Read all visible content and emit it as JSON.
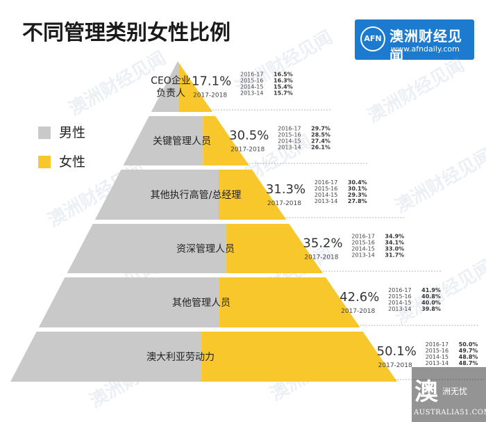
{
  "title": "不同管理类别女性比例",
  "brand": {
    "abbr": "AFN",
    "name": "澳洲财经见闻",
    "url": "www.afndaily.com"
  },
  "watermark_text": "澳洲财经见闻",
  "corner_logo": {
    "big": "澳",
    "small": "洲无忧",
    "en": "AUSTRALIA51.COM"
  },
  "colors": {
    "male": "#c9c9c9",
    "female": "#f8c72b",
    "brand": "#1d7bcf"
  },
  "legend": [
    {
      "label": "男性",
      "color": "#c9c9c9"
    },
    {
      "label": "女性",
      "color": "#f8c72b"
    }
  ],
  "chart_data": {
    "type": "bar",
    "subtype": "stacked-pyramid",
    "title": "不同管理类别女性比例",
    "period": "2017-2018",
    "categories": [
      "CEO企业负责人",
      "关键管理人员",
      "其他执行高管/总经理",
      "资深管理人员",
      "其他管理人员",
      "澳大利亚劳动力"
    ],
    "category_lines": [
      [
        "CEO企业",
        "负责人"
      ],
      [
        "关键管理人员"
      ],
      [
        "其他执行高管/总经理"
      ],
      [
        "资深管理人员"
      ],
      [
        "其他管理人员"
      ],
      [
        "澳大利亚劳动力"
      ]
    ],
    "series": [
      {
        "name": "女性",
        "values": [
          17.1,
          30.5,
          31.3,
          35.2,
          42.6,
          50.1
        ]
      },
      {
        "name": "男性",
        "values": [
          82.9,
          69.5,
          68.7,
          64.8,
          57.4,
          49.9
        ]
      }
    ],
    "value_labels": [
      "17.1%",
      "30.5%",
      "31.3%",
      "35.2%",
      "42.6%",
      "50.1%"
    ],
    "history_years": [
      "2016-17",
      "2015-16",
      "2014-15",
      "2013-14"
    ],
    "history": [
      [
        "16.5%",
        "16.3%",
        "15.4%",
        "15.7%"
      ],
      [
        "29.7%",
        "28.5%",
        "27.4%",
        "26.1%"
      ],
      [
        "30.4%",
        "30.1%",
        "29.3%",
        "27.8%"
      ],
      [
        "34.9%",
        "34.1%",
        "33.0%",
        "31.7%"
      ],
      [
        "41.9%",
        "40.8%",
        "40.0%",
        "39.8%"
      ],
      [
        "50.0%",
        "49.7%",
        "48.8%",
        "48.7%"
      ]
    ]
  }
}
